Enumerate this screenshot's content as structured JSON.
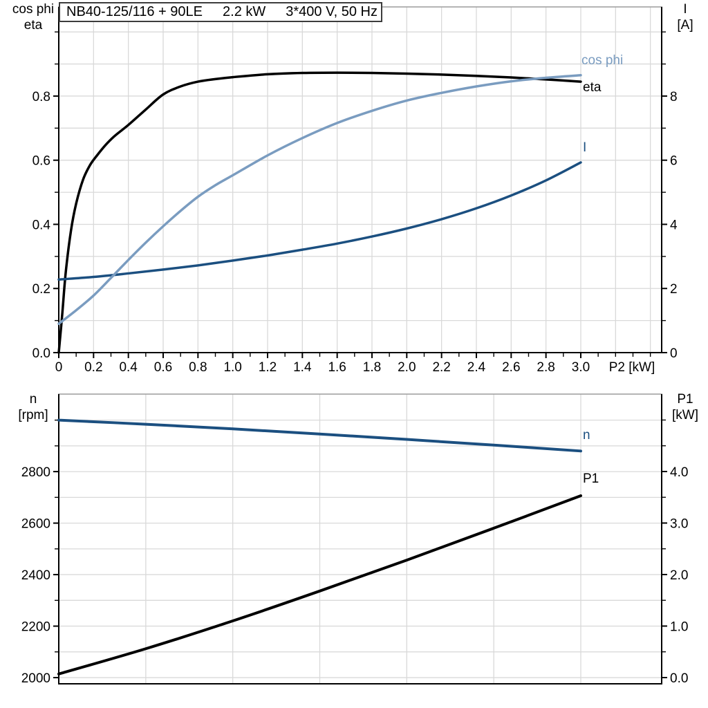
{
  "page": {
    "background": "#ffffff"
  },
  "title_box": {
    "model": "NB40-125/116 + 90LE",
    "power": "2.2 kW",
    "supply": "3*400 V, 50 Hz"
  },
  "colors": {
    "grid": "#d9d9d9",
    "frame_gray": "#9c9c9c",
    "axis": "#000000",
    "text": "#000000",
    "cos_phi": "#7a9cc0",
    "eta": "#000000",
    "current": "#1b4f80",
    "speed": "#1b4f80",
    "p1": "#000000"
  },
  "chart_data": [
    {
      "type": "line",
      "title": "NB40-125/116 + 90LE  2.2 kW  3*400 V, 50 Hz",
      "x_axis": {
        "label": "P2 [kW]",
        "range": [
          0,
          3.465
        ],
        "grid_step": 0.2,
        "tick_step": 0.1,
        "tick_labels": [
          {
            "v": 0,
            "t": "0"
          },
          {
            "v": 0.2,
            "t": "0.2"
          },
          {
            "v": 0.4,
            "t": "0.4"
          },
          {
            "v": 0.6,
            "t": "0.6"
          },
          {
            "v": 0.8,
            "t": "0.8"
          },
          {
            "v": 1.0,
            "t": "1.0"
          },
          {
            "v": 1.2,
            "t": "1.2"
          },
          {
            "v": 1.4,
            "t": "1.4"
          },
          {
            "v": 1.6,
            "t": "1.6"
          },
          {
            "v": 1.8,
            "t": "1.8"
          },
          {
            "v": 2.0,
            "t": "2.0"
          },
          {
            "v": 2.2,
            "t": "2.2"
          },
          {
            "v": 2.4,
            "t": "2.4"
          },
          {
            "v": 2.6,
            "t": "2.6"
          },
          {
            "v": 2.8,
            "t": "2.8"
          },
          {
            "v": 3.0,
            "t": "3.0"
          }
        ]
      },
      "y_left": {
        "label_lines": [
          "cos phi",
          "eta"
        ],
        "range": [
          0,
          1.078
        ],
        "grid_step": 0.1,
        "tick_step": 0.1,
        "tick_labels": [
          {
            "v": 0,
            "t": "0.0"
          },
          {
            "v": 0.2,
            "t": "0.2"
          },
          {
            "v": 0.4,
            "t": "0.4"
          },
          {
            "v": 0.6,
            "t": "0.6"
          },
          {
            "v": 0.8,
            "t": "0.8"
          }
        ]
      },
      "y_right": {
        "label_lines": [
          "I",
          "[A]"
        ],
        "range": [
          0,
          10.78
        ],
        "grid_step": 1,
        "tick_step": 1,
        "tick_labels": [
          {
            "v": 0,
            "t": "0"
          },
          {
            "v": 2,
            "t": "2"
          },
          {
            "v": 4,
            "t": "4"
          },
          {
            "v": 6,
            "t": "6"
          },
          {
            "v": 8,
            "t": "8"
          }
        ]
      },
      "series": [
        {
          "name": "eta",
          "axis": "left",
          "color": "#000000",
          "width": 3.5,
          "points": [
            [
              0,
              0
            ],
            [
              0.02,
              0.12
            ],
            [
              0.04,
              0.25
            ],
            [
              0.07,
              0.38
            ],
            [
              0.1,
              0.465
            ],
            [
              0.14,
              0.54
            ],
            [
              0.18,
              0.585
            ],
            [
              0.22,
              0.615
            ],
            [
              0.27,
              0.648
            ],
            [
              0.32,
              0.675
            ],
            [
              0.4,
              0.71
            ],
            [
              0.5,
              0.758
            ],
            [
              0.6,
              0.805
            ],
            [
              0.7,
              0.83
            ],
            [
              0.8,
              0.845
            ],
            [
              0.9,
              0.853
            ],
            [
              1.0,
              0.859
            ],
            [
              1.2,
              0.868
            ],
            [
              1.4,
              0.872
            ],
            [
              1.6,
              0.873
            ],
            [
              1.8,
              0.872
            ],
            [
              2.0,
              0.87
            ],
            [
              2.2,
              0.867
            ],
            [
              2.4,
              0.863
            ],
            [
              2.6,
              0.858
            ],
            [
              2.8,
              0.852
            ],
            [
              3.0,
              0.845
            ]
          ]
        },
        {
          "name": "I",
          "axis": "right",
          "color": "#1b4f80",
          "width": 3.5,
          "points": [
            [
              0,
              2.28
            ],
            [
              0.2,
              2.36
            ],
            [
              0.4,
              2.47
            ],
            [
              0.6,
              2.59
            ],
            [
              0.8,
              2.72
            ],
            [
              1.0,
              2.87
            ],
            [
              1.2,
              3.03
            ],
            [
              1.4,
              3.21
            ],
            [
              1.6,
              3.4
            ],
            [
              1.8,
              3.62
            ],
            [
              2.0,
              3.87
            ],
            [
              2.2,
              4.16
            ],
            [
              2.4,
              4.5
            ],
            [
              2.6,
              4.9
            ],
            [
              2.8,
              5.37
            ],
            [
              3.0,
              5.93
            ]
          ]
        },
        {
          "name": "cos phi",
          "axis": "left",
          "color": "#7a9cc0",
          "width": 3.5,
          "points": [
            [
              0,
              0.09
            ],
            [
              0.1,
              0.132
            ],
            [
              0.2,
              0.178
            ],
            [
              0.3,
              0.233
            ],
            [
              0.4,
              0.289
            ],
            [
              0.5,
              0.343
            ],
            [
              0.6,
              0.394
            ],
            [
              0.7,
              0.442
            ],
            [
              0.8,
              0.486
            ],
            [
              0.9,
              0.522
            ],
            [
              1.0,
              0.553
            ],
            [
              1.2,
              0.615
            ],
            [
              1.4,
              0.669
            ],
            [
              1.6,
              0.716
            ],
            [
              1.8,
              0.754
            ],
            [
              2.0,
              0.786
            ],
            [
              2.2,
              0.81
            ],
            [
              2.4,
              0.83
            ],
            [
              2.6,
              0.846
            ],
            [
              2.8,
              0.857
            ],
            [
              3.0,
              0.865
            ]
          ]
        }
      ]
    },
    {
      "type": "line",
      "title": "",
      "x_axis": {
        "label": "",
        "range": [
          0,
          3.465
        ],
        "grid_step": 0.5,
        "tick_step": null,
        "tick_labels": []
      },
      "y_left": {
        "label_lines": [
          "n",
          "[rpm]"
        ],
        "range": [
          1976,
          3101
        ],
        "grid_step": 100,
        "tick_step": 100,
        "tick_labels": [
          {
            "v": 2000,
            "t": "2000"
          },
          {
            "v": 2200,
            "t": "2200"
          },
          {
            "v": 2400,
            "t": "2400"
          },
          {
            "v": 2600,
            "t": "2600"
          },
          {
            "v": 2800,
            "t": "2800"
          }
        ]
      },
      "y_right": {
        "label_lines": [
          "P1",
          "[kW]"
        ],
        "range": [
          -0.121,
          5.503
        ],
        "grid_step": 0.5,
        "tick_step": 0.5,
        "tick_labels": [
          {
            "v": 0,
            "t": "0.0"
          },
          {
            "v": 1,
            "t": "1.0"
          },
          {
            "v": 2,
            "t": "2.0"
          },
          {
            "v": 3,
            "t": "3.0"
          },
          {
            "v": 4,
            "t": "4.0"
          }
        ]
      },
      "series": [
        {
          "name": "n",
          "axis": "left",
          "color": "#1b4f80",
          "width": 4,
          "points": [
            [
              0,
              3000
            ],
            [
              0.5,
              2984
            ],
            [
              1.0,
              2966
            ],
            [
              1.5,
              2946
            ],
            [
              2.0,
              2925
            ],
            [
              2.5,
              2903
            ],
            [
              3.0,
              2880
            ]
          ]
        },
        {
          "name": "P1",
          "axis": "right",
          "color": "#000000",
          "width": 4,
          "points": [
            [
              0,
              0.07
            ],
            [
              0.5,
              0.56
            ],
            [
              1.0,
              1.1
            ],
            [
              1.5,
              1.68
            ],
            [
              2.0,
              2.28
            ],
            [
              2.5,
              2.9
            ],
            [
              3.0,
              3.53
            ]
          ]
        }
      ]
    }
  ]
}
